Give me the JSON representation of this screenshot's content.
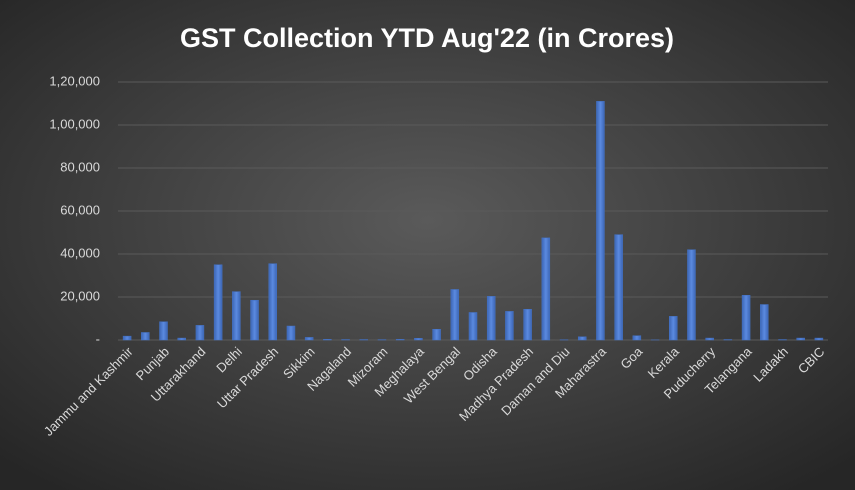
{
  "chart_data": {
    "type": "bar",
    "title": "GST Collection YTD Aug'22 (in Crores)",
    "categories": [
      "Jammu and Kashmir",
      null,
      "Punjab",
      null,
      "Uttarakhand",
      null,
      "Delhi",
      null,
      "Uttar Pradesh",
      null,
      "Sikkim",
      null,
      "Nagaland",
      null,
      "Mizoram",
      null,
      "Meghalaya",
      null,
      "West Bengal",
      null,
      "Odisha",
      null,
      "Madhya Pradesh",
      null,
      "Daman and Diu",
      null,
      "Maharastra",
      null,
      "Goa",
      null,
      "Kerala",
      null,
      "Puducherry",
      null,
      "Telangana",
      null,
      "Ladakh",
      null,
      "CBIC"
    ],
    "values": [
      1800,
      3500,
      8500,
      900,
      6800,
      35000,
      22500,
      18500,
      35500,
      6500,
      1200,
      300,
      200,
      200,
      150,
      300,
      800,
      5000,
      23500,
      12800,
      20300,
      13300,
      14300,
      47500,
      100,
      1500,
      111000,
      49000,
      2000,
      50,
      11000,
      42000,
      900,
      200,
      20800,
      16500,
      200,
      900,
      900
    ],
    "color": "#4472c4",
    "ylim": [
      0,
      120000
    ],
    "yticks": [
      {
        "value": 0,
        "label": "-"
      },
      {
        "value": 20000,
        "label": "20,000"
      },
      {
        "value": 40000,
        "label": "40,000"
      },
      {
        "value": 60000,
        "label": "60,000"
      },
      {
        "value": 80000,
        "label": "80,000"
      },
      {
        "value": 100000,
        "label": "1,00,000"
      },
      {
        "value": 120000,
        "label": "1,20,000"
      }
    ],
    "grid": true
  }
}
